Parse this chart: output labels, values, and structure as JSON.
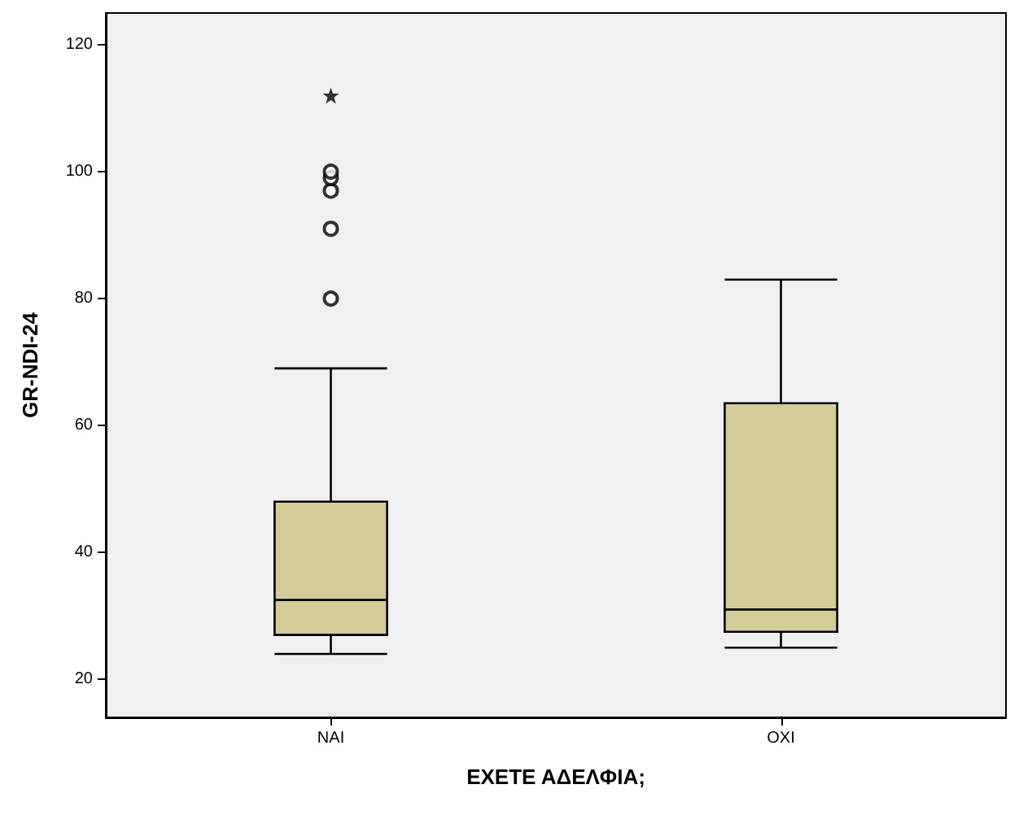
{
  "chart_data": {
    "type": "box",
    "xlabel": "ΕΧΕΤΕ ΑΔΕΛΦΙΑ;",
    "ylabel": "GR-NDI-24",
    "categories": [
      "ΝΑΙ",
      "ΟΧΙ"
    ],
    "ylim": [
      14,
      125
    ],
    "yticks": [
      20,
      40,
      60,
      80,
      100,
      120
    ],
    "grid": false,
    "marker": "circle",
    "series": [
      {
        "color": "#d3cb98",
        "boxes": [
          {
            "low": 24,
            "q1": 27,
            "median": 32.5,
            "q3": 48,
            "high": 69,
            "outliers": [
              80,
              91,
              97,
              99,
              100
            ]
          },
          {
            "low": 25,
            "q1": 27.5,
            "median": 31,
            "q3": 63.5,
            "high": 83
          }
        ]
      },
      {
        "type": "scatter",
        "x": [
          "ΝΑΙ"
        ],
        "values": [
          112
        ],
        "marker": "star",
        "color": "#000000"
      }
    ]
  }
}
